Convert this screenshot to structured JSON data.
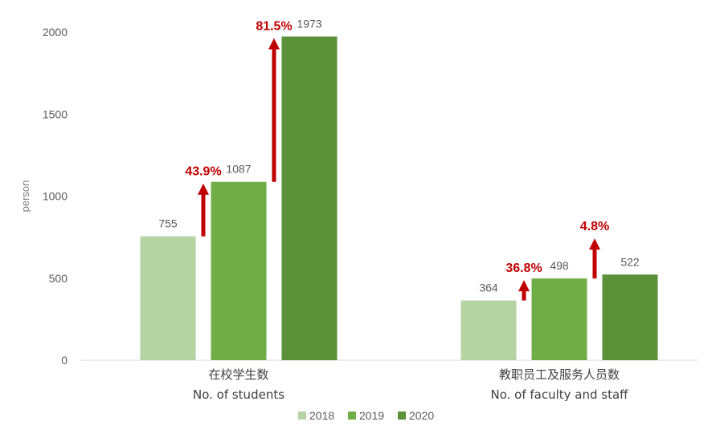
{
  "chart_data": {
    "type": "bar",
    "categories": [
      {
        "zh": "在校学生数",
        "en": "No. of students"
      },
      {
        "zh": "教职员工及服务人员数",
        "en": "No. of faculty and staff"
      }
    ],
    "series": [
      {
        "name": "2018",
        "color": "#b5d3a3",
        "values": [
          755,
          364
        ]
      },
      {
        "name": "2019",
        "color": "#70ad47",
        "values": [
          1087,
          498
        ]
      },
      {
        "name": "2020",
        "color": "#5b9138",
        "values": [
          1973,
          522
        ]
      }
    ],
    "ylabel": "person",
    "ylim": [
      0,
      2000
    ],
    "yticks": [
      0,
      500,
      1000,
      1500,
      2000
    ],
    "growth_labels": [
      {
        "category": 0,
        "between": [
          0,
          1
        ],
        "text": "43.9%"
      },
      {
        "category": 0,
        "between": [
          1,
          2
        ],
        "text": "81.5%"
      },
      {
        "category": 1,
        "between": [
          0,
          1
        ],
        "text": "36.8%"
      },
      {
        "category": 1,
        "between": [
          1,
          2
        ],
        "text": "4.8%"
      }
    ],
    "growth_color": "#c00000",
    "axis_color": "#d9d9d9",
    "legend_position": "bottom",
    "grid": false
  }
}
